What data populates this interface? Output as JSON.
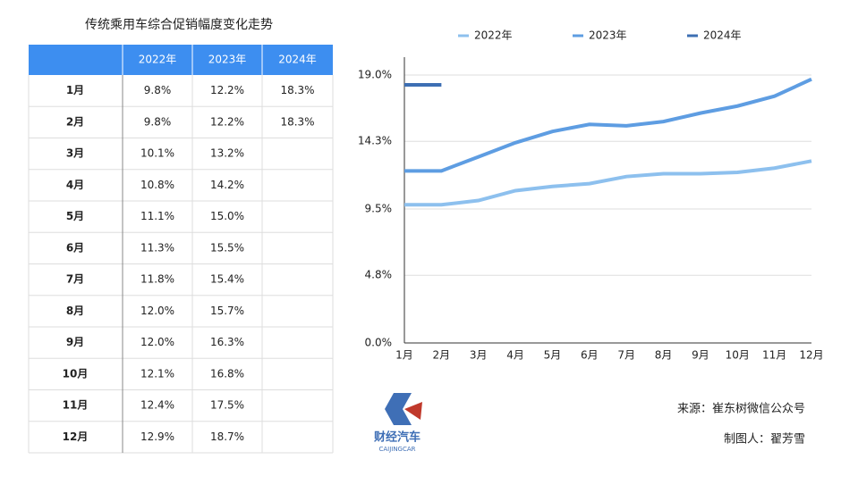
{
  "table": {
    "title": "传统乘用车综合促销幅度变化走势",
    "header": [
      "2022年",
      "2023年",
      "2024年"
    ],
    "rows": [
      {
        "label": "1月",
        "cells": [
          "9.8%",
          "12.2%",
          "18.3%"
        ]
      },
      {
        "label": "2月",
        "cells": [
          "9.8%",
          "12.2%",
          "18.3%"
        ]
      },
      {
        "label": "3月",
        "cells": [
          "10.1%",
          "13.2%"
        ]
      },
      {
        "label": "4月",
        "cells": [
          "10.8%",
          "14.2%"
        ]
      },
      {
        "label": "5月",
        "cells": [
          "11.1%",
          "15.0%"
        ]
      },
      {
        "label": "6月",
        "cells": [
          "11.3%",
          "15.5%"
        ]
      },
      {
        "label": "7月",
        "cells": [
          "11.8%",
          "15.4%"
        ]
      },
      {
        "label": "8月",
        "cells": [
          "12.0%",
          "15.7%"
        ]
      },
      {
        "label": "9月",
        "cells": [
          "12.0%",
          "16.3%"
        ]
      },
      {
        "label": "10月",
        "cells": [
          "12.1%",
          "16.8%"
        ]
      },
      {
        "label": "11月",
        "cells": [
          "12.4%",
          "17.5%"
        ]
      },
      {
        "label": "12月",
        "cells": [
          "12.9%",
          "18.7%"
        ]
      }
    ]
  },
  "chart_data": {
    "type": "line",
    "categories": [
      "1月",
      "2月",
      "3月",
      "4月",
      "5月",
      "6月",
      "7月",
      "8月",
      "9月",
      "10月",
      "11月",
      "12月"
    ],
    "series": [
      {
        "name": "2022年",
        "color": "#8dc0ee",
        "values": [
          9.8,
          9.8,
          10.1,
          10.8,
          11.1,
          11.3,
          11.8,
          12.0,
          12.0,
          12.1,
          12.4,
          12.9
        ]
      },
      {
        "name": "2023年",
        "color": "#5e9de2",
        "values": [
          12.2,
          12.2,
          13.2,
          14.2,
          15.0,
          15.5,
          15.4,
          15.7,
          16.3,
          16.8,
          17.5,
          18.7
        ]
      },
      {
        "name": "2024年",
        "color": "#3d6fb3",
        "values": [
          18.3,
          18.3,
          null,
          null,
          null,
          null,
          null,
          null,
          null,
          null,
          null,
          null
        ]
      }
    ],
    "ylim": [
      0,
      19
    ],
    "yticks": [
      {
        "value": 0,
        "label": "0.0%"
      },
      {
        "value": 4.8,
        "label": "4.8%"
      },
      {
        "value": 9.5,
        "label": "9.5%"
      },
      {
        "value": 14.3,
        "label": "14.3%"
      },
      {
        "value": 19,
        "label": "19.0%"
      }
    ],
    "grid": true
  },
  "footer": {
    "source": "来源：崔东树微信公众号",
    "author": "制图人：翟芳雪",
    "logo_cn": "财经汽车",
    "logo_en": "CAIJINGCAR"
  }
}
